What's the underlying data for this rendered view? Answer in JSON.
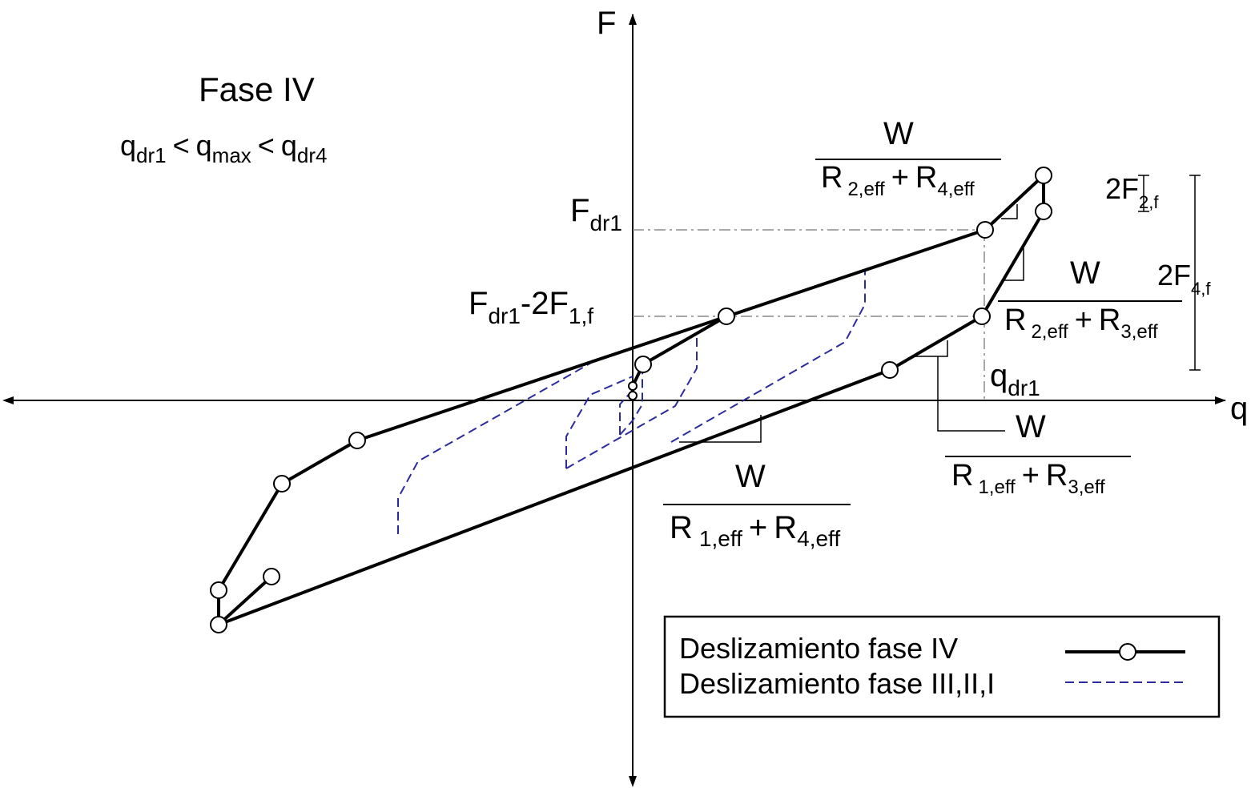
{
  "axes": {
    "x_label": "q",
    "y_label": "F"
  },
  "phase": {
    "title": "Fase IV",
    "condition": {
      "q1": "q",
      "q1_sub": "dr1",
      "lt1": "<",
      "q2": "q",
      "q2_sub": "max",
      "lt2": "<",
      "q3": "q",
      "q3_sub": "dr4"
    }
  },
  "labels": {
    "fdr1": {
      "main": "F",
      "sub": "dr1"
    },
    "fdr1_minus": {
      "main1": "F",
      "sub1": "dr1",
      "mid": "-2F",
      "sub2": "1,f"
    },
    "qdr1": {
      "main": "q",
      "sub": "dr1"
    },
    "two_f2f": {
      "main": "2F",
      "sub": "2,f"
    },
    "two_f4f": {
      "main": "2F",
      "sub": "4,f"
    }
  },
  "slopes": {
    "s24": {
      "num": "W",
      "den_a": "R",
      "den_a_sub": "2,eff",
      "plus": "+",
      "den_b": "R",
      "den_b_sub": "4,eff"
    },
    "s23": {
      "num": "W",
      "den_a": "R",
      "den_a_sub": "2,eff",
      "plus": "+",
      "den_b": "R",
      "den_b_sub": "3,eff"
    },
    "s13": {
      "num": "W",
      "den_a": "R",
      "den_a_sub": "1,eff",
      "plus": "+",
      "den_b": "R",
      "den_b_sub": "3,eff"
    },
    "s14": {
      "num": "W",
      "den_a": "R",
      "den_a_sub": "1,eff",
      "plus": "+",
      "den_b": "R",
      "den_b_sub": "4,eff"
    }
  },
  "legend": {
    "items": [
      {
        "label": "Deslizamiento fase IV",
        "color": "#000000",
        "style": "solid-with-circle-markers"
      },
      {
        "label": "Deslizamiento fase III,II,I",
        "color": "#2b2b9e",
        "style": "dashed"
      }
    ]
  },
  "colors": {
    "main_curve": "#000000",
    "dashed_curve": "#2b2b9e",
    "guide_lines": "#8a8a8a"
  }
}
